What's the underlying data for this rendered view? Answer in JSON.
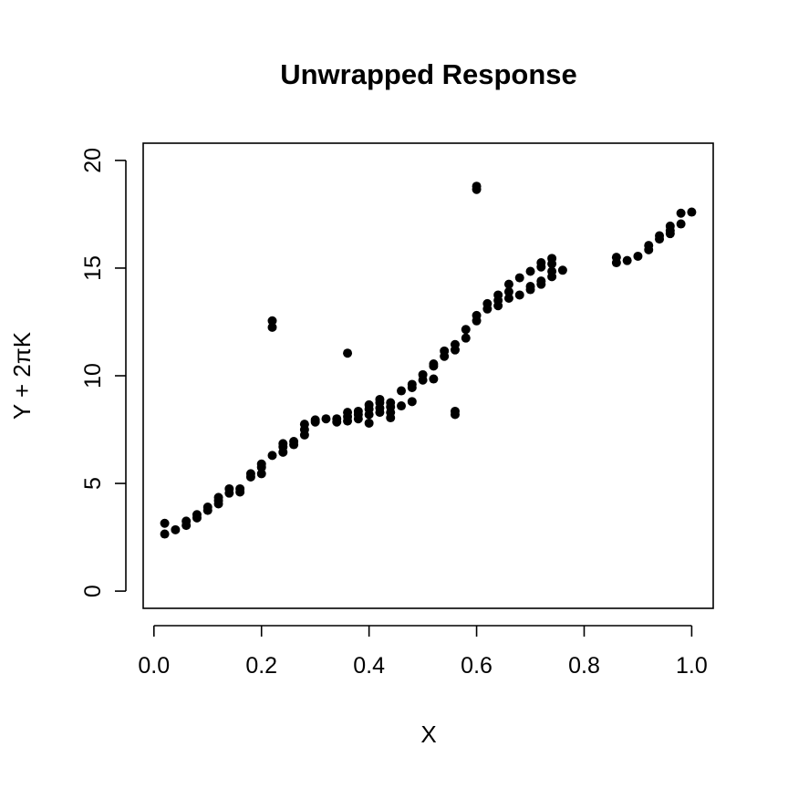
{
  "chart_data": {
    "type": "scatter",
    "title": "Unwrapped Response",
    "xlabel": "X",
    "ylabel": "Y + 2πK",
    "xlim": [
      -0.02,
      1.04
    ],
    "ylim": [
      -0.8,
      20.8
    ],
    "xticks": [
      0.0,
      0.2,
      0.4,
      0.6,
      0.8,
      1.0
    ],
    "xtick_labels": [
      "0.0",
      "0.2",
      "0.4",
      "0.6",
      "0.8",
      "1.0"
    ],
    "yticks": [
      0,
      5,
      10,
      15,
      20
    ],
    "ytick_labels": [
      "0",
      "5",
      "10",
      "15",
      "20"
    ],
    "grid": false,
    "point_color": "#000000",
    "series": [
      {
        "points": [
          {
            "x": 0.02,
            "y": 2.65
          },
          {
            "x": 0.02,
            "y": 3.15
          },
          {
            "x": 0.04,
            "y": 2.85
          },
          {
            "x": 0.06,
            "y": 3.05
          },
          {
            "x": 0.06,
            "y": 3.25
          },
          {
            "x": 0.08,
            "y": 3.4
          },
          {
            "x": 0.08,
            "y": 3.55
          },
          {
            "x": 0.1,
            "y": 3.75
          },
          {
            "x": 0.1,
            "y": 3.9
          },
          {
            "x": 0.12,
            "y": 4.05
          },
          {
            "x": 0.12,
            "y": 4.2
          },
          {
            "x": 0.12,
            "y": 4.35
          },
          {
            "x": 0.14,
            "y": 4.55
          },
          {
            "x": 0.14,
            "y": 4.75
          },
          {
            "x": 0.16,
            "y": 4.6
          },
          {
            "x": 0.16,
            "y": 4.75
          },
          {
            "x": 0.18,
            "y": 5.3
          },
          {
            "x": 0.18,
            "y": 5.45
          },
          {
            "x": 0.2,
            "y": 5.45
          },
          {
            "x": 0.2,
            "y": 5.75
          },
          {
            "x": 0.2,
            "y": 5.9
          },
          {
            "x": 0.22,
            "y": 6.3
          },
          {
            "x": 0.22,
            "y": 12.25
          },
          {
            "x": 0.22,
            "y": 12.55
          },
          {
            "x": 0.24,
            "y": 6.45
          },
          {
            "x": 0.24,
            "y": 6.7
          },
          {
            "x": 0.24,
            "y": 6.85
          },
          {
            "x": 0.26,
            "y": 6.8
          },
          {
            "x": 0.26,
            "y": 6.95
          },
          {
            "x": 0.28,
            "y": 7.25
          },
          {
            "x": 0.28,
            "y": 7.5
          },
          {
            "x": 0.28,
            "y": 7.75
          },
          {
            "x": 0.3,
            "y": 7.85
          },
          {
            "x": 0.3,
            "y": 7.95
          },
          {
            "x": 0.32,
            "y": 8.0
          },
          {
            "x": 0.34,
            "y": 7.85
          },
          {
            "x": 0.34,
            "y": 8.0
          },
          {
            "x": 0.36,
            "y": 7.9
          },
          {
            "x": 0.36,
            "y": 8.1
          },
          {
            "x": 0.36,
            "y": 8.3
          },
          {
            "x": 0.36,
            "y": 11.05
          },
          {
            "x": 0.38,
            "y": 8.0
          },
          {
            "x": 0.38,
            "y": 8.2
          },
          {
            "x": 0.38,
            "y": 8.35
          },
          {
            "x": 0.4,
            "y": 7.8
          },
          {
            "x": 0.4,
            "y": 8.2
          },
          {
            "x": 0.4,
            "y": 8.45
          },
          {
            "x": 0.4,
            "y": 8.65
          },
          {
            "x": 0.42,
            "y": 8.3
          },
          {
            "x": 0.42,
            "y": 8.5
          },
          {
            "x": 0.42,
            "y": 8.75
          },
          {
            "x": 0.42,
            "y": 8.9
          },
          {
            "x": 0.44,
            "y": 8.05
          },
          {
            "x": 0.44,
            "y": 8.3
          },
          {
            "x": 0.44,
            "y": 8.55
          },
          {
            "x": 0.44,
            "y": 8.75
          },
          {
            "x": 0.46,
            "y": 8.6
          },
          {
            "x": 0.46,
            "y": 9.3
          },
          {
            "x": 0.48,
            "y": 8.8
          },
          {
            "x": 0.48,
            "y": 9.45
          },
          {
            "x": 0.48,
            "y": 9.6
          },
          {
            "x": 0.5,
            "y": 9.8
          },
          {
            "x": 0.5,
            "y": 10.05
          },
          {
            "x": 0.52,
            "y": 9.85
          },
          {
            "x": 0.52,
            "y": 10.45
          },
          {
            "x": 0.52,
            "y": 10.55
          },
          {
            "x": 0.54,
            "y": 10.9
          },
          {
            "x": 0.54,
            "y": 11.15
          },
          {
            "x": 0.56,
            "y": 8.2
          },
          {
            "x": 0.56,
            "y": 8.35
          },
          {
            "x": 0.56,
            "y": 11.2
          },
          {
            "x": 0.56,
            "y": 11.45
          },
          {
            "x": 0.58,
            "y": 11.75
          },
          {
            "x": 0.58,
            "y": 12.15
          },
          {
            "x": 0.6,
            "y": 12.55
          },
          {
            "x": 0.6,
            "y": 12.8
          },
          {
            "x": 0.6,
            "y": 18.65
          },
          {
            "x": 0.6,
            "y": 18.8
          },
          {
            "x": 0.62,
            "y": 13.1
          },
          {
            "x": 0.62,
            "y": 13.35
          },
          {
            "x": 0.64,
            "y": 13.25
          },
          {
            "x": 0.64,
            "y": 13.5
          },
          {
            "x": 0.64,
            "y": 13.75
          },
          {
            "x": 0.66,
            "y": 13.6
          },
          {
            "x": 0.66,
            "y": 13.9
          },
          {
            "x": 0.66,
            "y": 14.25
          },
          {
            "x": 0.68,
            "y": 13.75
          },
          {
            "x": 0.68,
            "y": 14.55
          },
          {
            "x": 0.7,
            "y": 14.0
          },
          {
            "x": 0.7,
            "y": 14.15
          },
          {
            "x": 0.7,
            "y": 14.85
          },
          {
            "x": 0.72,
            "y": 14.25
          },
          {
            "x": 0.72,
            "y": 14.4
          },
          {
            "x": 0.72,
            "y": 15.05
          },
          {
            "x": 0.72,
            "y": 15.25
          },
          {
            "x": 0.74,
            "y": 14.6
          },
          {
            "x": 0.74,
            "y": 14.85
          },
          {
            "x": 0.74,
            "y": 15.2
          },
          {
            "x": 0.74,
            "y": 15.45
          },
          {
            "x": 0.76,
            "y": 14.9
          },
          {
            "x": 0.86,
            "y": 15.25
          },
          {
            "x": 0.86,
            "y": 15.5
          },
          {
            "x": 0.88,
            "y": 15.35
          },
          {
            "x": 0.9,
            "y": 15.55
          },
          {
            "x": 0.92,
            "y": 15.85
          },
          {
            "x": 0.92,
            "y": 16.05
          },
          {
            "x": 0.94,
            "y": 16.35
          },
          {
            "x": 0.94,
            "y": 16.5
          },
          {
            "x": 0.96,
            "y": 16.6
          },
          {
            "x": 0.96,
            "y": 16.75
          },
          {
            "x": 0.96,
            "y": 16.95
          },
          {
            "x": 0.98,
            "y": 17.05
          },
          {
            "x": 0.98,
            "y": 17.55
          },
          {
            "x": 1.0,
            "y": 17.6
          }
        ]
      }
    ]
  }
}
